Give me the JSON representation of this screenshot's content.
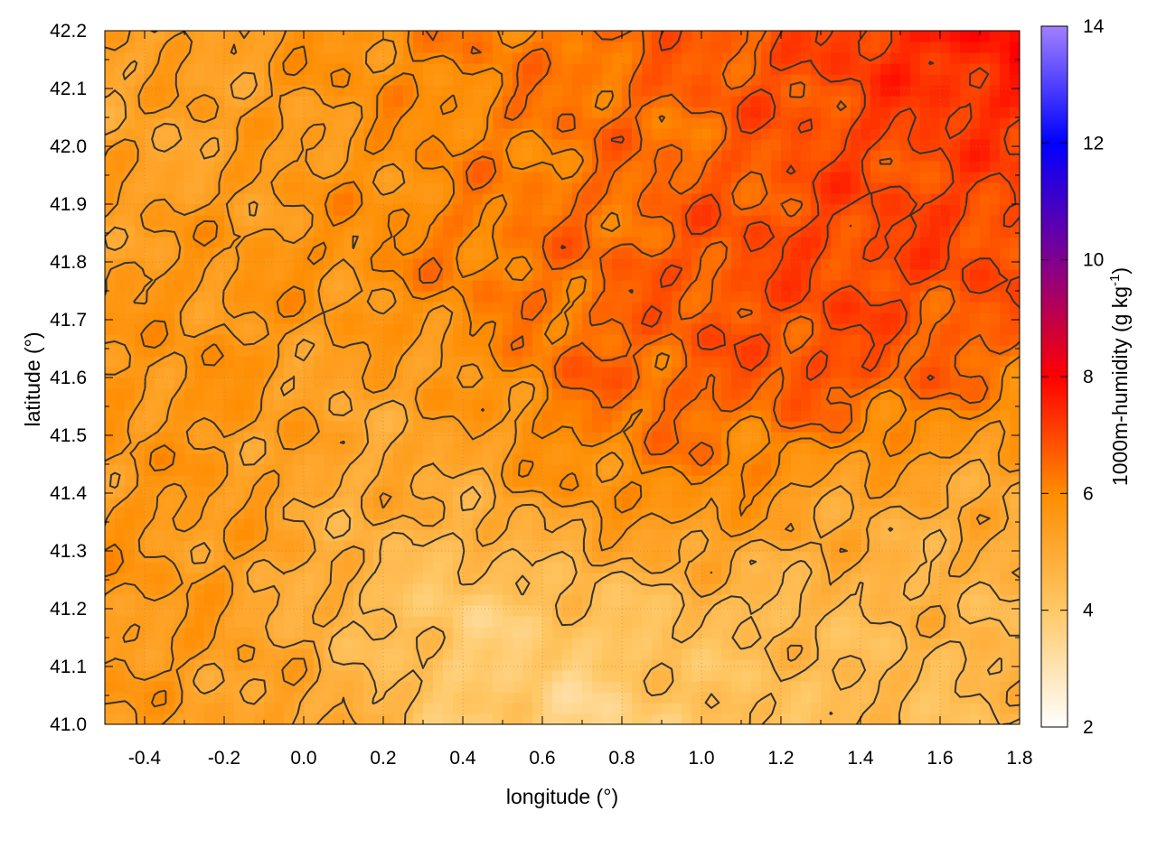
{
  "chart_data": {
    "type": "heatmap",
    "title": "",
    "xlabel": "longitude (°)",
    "ylabel": "latitude (°)",
    "xlim": [
      -0.5,
      1.8
    ],
    "ylim": [
      41.0,
      42.2
    ],
    "x_ticks": [
      -0.4,
      -0.2,
      0.0,
      0.2,
      0.4,
      0.6,
      0.8,
      1.0,
      1.2,
      1.4,
      1.6,
      1.8
    ],
    "x_tick_labels": [
      "-0.4",
      "-0.2",
      "0.0",
      "0.2",
      "0.4",
      "0.6",
      "0.8",
      "1.0",
      "1.2",
      "1.4",
      "1.6",
      "1.8"
    ],
    "y_ticks": [
      41.0,
      41.1,
      41.2,
      41.3,
      41.4,
      41.5,
      41.6,
      41.7,
      41.8,
      41.9,
      42.0,
      42.1,
      42.2
    ],
    "y_tick_labels": [
      "41.0",
      "41.1",
      "41.2",
      "41.3",
      "41.4",
      "41.5",
      "41.6",
      "41.7",
      "41.8",
      "41.9",
      "42.0",
      "42.1",
      "42.2"
    ],
    "grid": true,
    "colorbar": {
      "label": "1000m-humidity (g kg-1)",
      "label_main": "1000m-humidity (g kg",
      "label_sup": "-1",
      "label_end": ")",
      "range": [
        2,
        14
      ],
      "ticks": [
        2,
        4,
        6,
        8,
        10,
        12,
        14
      ],
      "tick_labels": [
        "2",
        "4",
        "6",
        "8",
        "10",
        "12",
        "14"
      ],
      "stops": [
        {
          "value": 2,
          "color": "#ffffff"
        },
        {
          "value": 4,
          "color": "#ffc866"
        },
        {
          "value": 6,
          "color": "#ff8c00"
        },
        {
          "value": 8,
          "color": "#ff0000"
        },
        {
          "value": 10,
          "color": "#800090"
        },
        {
          "value": 12,
          "color": "#0000ff"
        },
        {
          "value": 14,
          "color": "#a080ff"
        }
      ]
    },
    "field_samples": {
      "lon": [
        -0.5,
        -0.2,
        0.1,
        0.4,
        0.7,
        1.0,
        1.3,
        1.6,
        1.8
      ],
      "lat": [
        41.0,
        41.2,
        41.4,
        41.6,
        41.8,
        42.0,
        42.2
      ],
      "values": [
        [
          5.5,
          5.3,
          5.0,
          4.0,
          3.5,
          4.2,
          4.3,
          4.4,
          4.5
        ],
        [
          5.6,
          5.4,
          4.6,
          3.8,
          4.2,
          4.4,
          4.5,
          4.6,
          4.7
        ],
        [
          5.6,
          5.5,
          5.0,
          5.0,
          5.7,
          6.0,
          5.3,
          5.0,
          5.0
        ],
        [
          5.6,
          5.7,
          5.2,
          5.6,
          6.5,
          6.6,
          6.9,
          6.5,
          6.2
        ],
        [
          5.5,
          5.6,
          5.8,
          6.2,
          6.4,
          6.8,
          7.0,
          7.0,
          6.9
        ],
        [
          5.2,
          5.3,
          5.6,
          6.0,
          6.3,
          6.5,
          6.9,
          7.0,
          7.1
        ],
        [
          5.3,
          5.4,
          5.8,
          6.1,
          6.4,
          6.7,
          7.0,
          7.6,
          7.8
        ]
      ]
    },
    "contour_levels": [
      4.5,
      5.0,
      5.5,
      6.0,
      6.5,
      7.0
    ],
    "contour_color": "#333333"
  }
}
